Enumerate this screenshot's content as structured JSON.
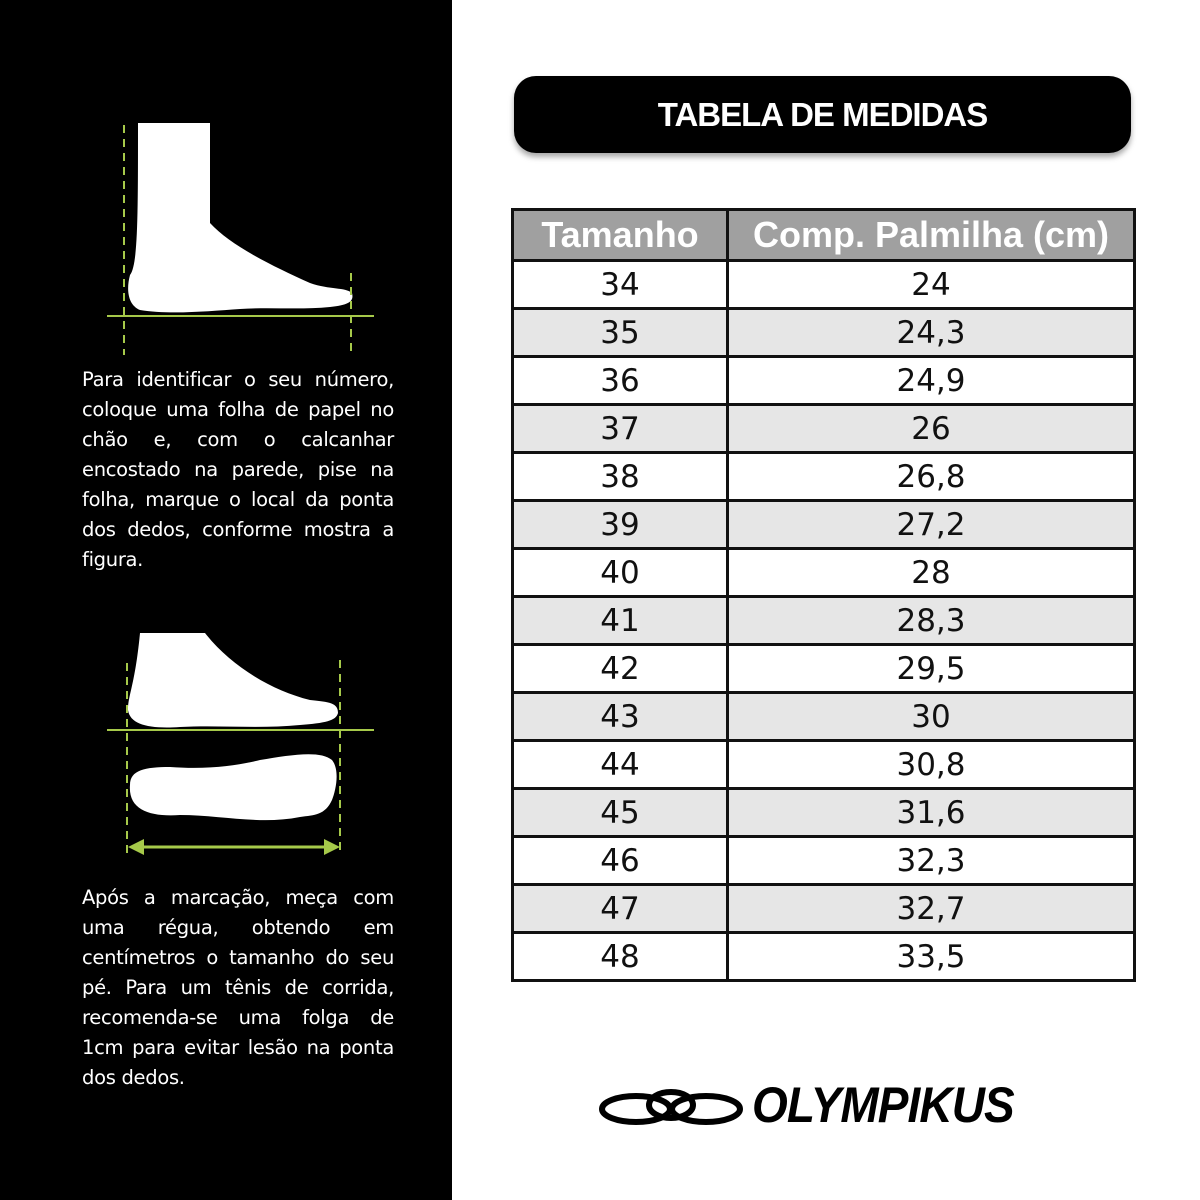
{
  "instructions": {
    "paragraph_1": "Para identificar o seu número, coloque uma folha de papel no chão e, com o calcanhar encostado na parede, pise na folha, marque o local da ponta dos dedos, conforme mostra a figura.",
    "paragraph_2": "Após a marcação, meça com uma régua, obtendo em centímetros o tamanho do seu pé. Para um tênis de corrida, recomenda-se uma folga de 1cm para evitar lesão na ponta dos dedos."
  },
  "title": "TABELA DE MEDIDAS",
  "table": {
    "headers": [
      "Tamanho",
      "Comp. Palmilha (cm)"
    ],
    "rows": [
      [
        "34",
        "24"
      ],
      [
        "35",
        "24,3"
      ],
      [
        "36",
        "24,9"
      ],
      [
        "37",
        "26"
      ],
      [
        "38",
        "26,8"
      ],
      [
        "39",
        "27,2"
      ],
      [
        "40",
        "28"
      ],
      [
        "41",
        "28,3"
      ],
      [
        "42",
        "29,5"
      ],
      [
        "43",
        "30"
      ],
      [
        "44",
        "30,8"
      ],
      [
        "45",
        "31,6"
      ],
      [
        "46",
        "32,3"
      ],
      [
        "47",
        "32,7"
      ],
      [
        "48",
        "33,5"
      ]
    ]
  },
  "brand": {
    "name": "OLYMPIKUS",
    "icon": "olympikus-rings-logo"
  },
  "colors": {
    "guide_line": "#a6c94a",
    "header_bg": "#a0a0a0",
    "alt_row": "#e6e6e6",
    "panel": "#000000"
  }
}
